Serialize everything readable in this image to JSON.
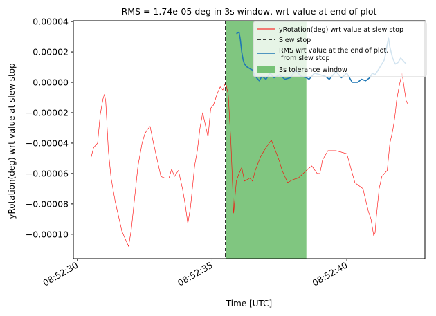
{
  "chart_data": {
    "type": "line",
    "title": "RMS = 1.74e-05 deg in 3s window, wrt value at end of plot",
    "xlabel": "Time [UTC]",
    "ylabel": "yRotation(deg) wrt value at slew stop",
    "x_ticks": [
      "08:52:30",
      "08:52:35",
      "08:52:40"
    ],
    "x_tick_values": [
      0,
      5,
      10
    ],
    "y_ticks": [
      "−0.00010",
      "−0.00008",
      "−0.00006",
      "−0.00004",
      "−0.00002",
      "0.00000",
      "0.00002",
      "0.00004"
    ],
    "y_tick_values": [
      -0.0001,
      -8e-05,
      -6e-05,
      -4e-05,
      -2e-05,
      0,
      2e-05,
      4e-05
    ],
    "xlim": [
      -0.15,
      12.9
    ],
    "ylim": [
      -0.000116,
      4.05e-05
    ],
    "grid": false,
    "legend_position": "upper-right",
    "colors": {
      "rotation": "#ff0000",
      "slew_stop": "#000000",
      "rms": "#1f77b4",
      "window": "#2ca02c"
    },
    "legend": [
      {
        "label": "yRotation(deg) wrt value at slew stop",
        "style": "line",
        "color": "#ff0000"
      },
      {
        "label": "Slew stop",
        "style": "dashed",
        "color": "#000000"
      },
      {
        "label": "RMS wrt value at the end of plot,\n from slew stop",
        "style": "line",
        "color": "#1f77b4"
      },
      {
        "label": "3s tolerance window",
        "style": "patch",
        "color": "#2ca02c"
      }
    ],
    "slew_stop_x": 5.5,
    "tolerance_window": [
      5.5,
      8.5
    ],
    "series": [
      {
        "name": "yRotation(deg) wrt value at slew stop",
        "x": [
          0.5,
          0.6,
          0.75,
          0.85,
          0.95,
          1.0,
          1.05,
          1.15,
          1.25,
          1.4,
          1.55,
          1.65,
          1.8,
          1.9,
          2.0,
          2.1,
          2.25,
          2.4,
          2.5,
          2.6,
          2.7,
          2.8,
          2.95,
          3.1,
          3.25,
          3.4,
          3.5,
          3.6,
          3.75,
          3.9,
          4.0,
          4.1,
          4.2,
          4.35,
          4.45,
          4.55,
          4.65,
          4.75,
          4.85,
          4.95,
          5.05,
          5.2,
          5.3,
          5.4,
          5.5,
          5.6,
          5.7,
          5.8,
          5.9,
          6.0,
          6.1,
          6.2,
          6.3,
          6.4,
          6.5,
          6.6,
          6.8,
          7.0,
          7.2,
          7.35,
          7.5,
          7.6,
          7.8,
          8.0,
          8.2,
          8.5,
          8.7,
          8.9,
          9.0,
          9.1,
          9.3,
          9.6,
          9.8,
          10.0,
          10.3,
          10.6,
          10.8,
          10.9,
          11.0,
          11.05,
          11.1,
          11.2,
          11.3,
          11.5,
          11.6,
          11.7,
          11.75,
          11.8,
          11.85,
          11.95,
          12.05,
          12.1,
          12.15,
          12.2,
          12.25
        ],
        "y": [
          -5e-05,
          -4.3e-05,
          -4e-05,
          -2.1e-05,
          -1.1e-05,
          -8e-06,
          -1.2e-05,
          -4.5e-05,
          -6.3e-05,
          -7.8e-05,
          -9e-05,
          -9.8e-05,
          -0.000104,
          -0.000108,
          -9.7e-05,
          -8e-05,
          -5.5e-05,
          -4e-05,
          -3.4e-05,
          -3.1e-05,
          -2.9e-05,
          -3.8e-05,
          -5e-05,
          -6.2e-05,
          -6.3e-05,
          -6.3e-05,
          -5.7e-05,
          -6.2e-05,
          -5.8e-05,
          -7e-05,
          -8e-05,
          -9.3e-05,
          -8.2e-05,
          -5.5e-05,
          -4.5e-05,
          -3e-05,
          -2e-05,
          -2.8e-05,
          -3.6e-05,
          -1.7e-05,
          -1.5e-05,
          -7e-06,
          -3e-06,
          -5e-06,
          0.0,
          -8e-06,
          -4e-05,
          -8.6e-05,
          -6.5e-05,
          -6e-05,
          -5.6e-05,
          -6.5e-05,
          -6.4e-05,
          -6.3e-05,
          -6.5e-05,
          -5.8e-05,
          -4.9e-05,
          -4.3e-05,
          -3.8e-05,
          -4.5e-05,
          -5.2e-05,
          -5.8e-05,
          -6.6e-05,
          -6.4e-05,
          -6.3e-05,
          -5.8e-05,
          -5.5e-05,
          -6e-05,
          -6e-05,
          -5.1e-05,
          -4.5e-05,
          -4.5e-05,
          -4.6e-05,
          -4.7e-05,
          -6.6e-05,
          -7e-05,
          -8.5e-05,
          -9e-05,
          -0.000101,
          -9.9e-05,
          -8.8e-05,
          -7e-05,
          -6.2e-05,
          -5.8e-05,
          -4e-05,
          -3.2e-05,
          -2.7e-05,
          -2e-05,
          -1.2e-05,
          -2e-06,
          6e-06,
          0.0,
          -6e-06,
          -1.2e-05,
          -1.4e-05
        ]
      },
      {
        "name": "RMS wrt value at the end of plot,\n from slew stop",
        "x": [
          5.9,
          6.0,
          6.05,
          6.1,
          6.15,
          6.2,
          6.3,
          6.5,
          6.6,
          6.75,
          6.85,
          7.0,
          7.15,
          7.3,
          7.5,
          7.7,
          7.9,
          8.1,
          8.3,
          8.5,
          8.6,
          8.8,
          9.0,
          9.2,
          9.35,
          9.6,
          9.8,
          10.0,
          10.2,
          10.4,
          10.55,
          10.7,
          10.85,
          10.95,
          11.05,
          11.2,
          11.3,
          11.4,
          11.5,
          11.55,
          11.6,
          11.7,
          11.8,
          11.9,
          12.0,
          12.1,
          12.2
        ],
        "y": [
          3.2e-05,
          3.3e-05,
          2.8e-05,
          2e-05,
          1.5e-05,
          1.2e-05,
          1e-05,
          8e-06,
          4e-06,
          1e-06,
          4e-06,
          2e-06,
          6e-06,
          3e-06,
          5e-06,
          2e-06,
          3e-06,
          8e-06,
          4e-06,
          3e-06,
          2e-06,
          6e-06,
          5e-06,
          4e-06,
          2e-06,
          7e-06,
          3e-06,
          6e-06,
          0.0,
          0.0,
          2e-06,
          1e-06,
          3e-06,
          6e-06,
          5e-06,
          9e-06,
          1.2e-05,
          1.5e-05,
          2.5e-05,
          2.9e-05,
          2.3e-05,
          1.6e-05,
          1.2e-05,
          1.3e-05,
          1.6e-05,
          1.4e-05,
          1.2e-05
        ]
      }
    ]
  }
}
